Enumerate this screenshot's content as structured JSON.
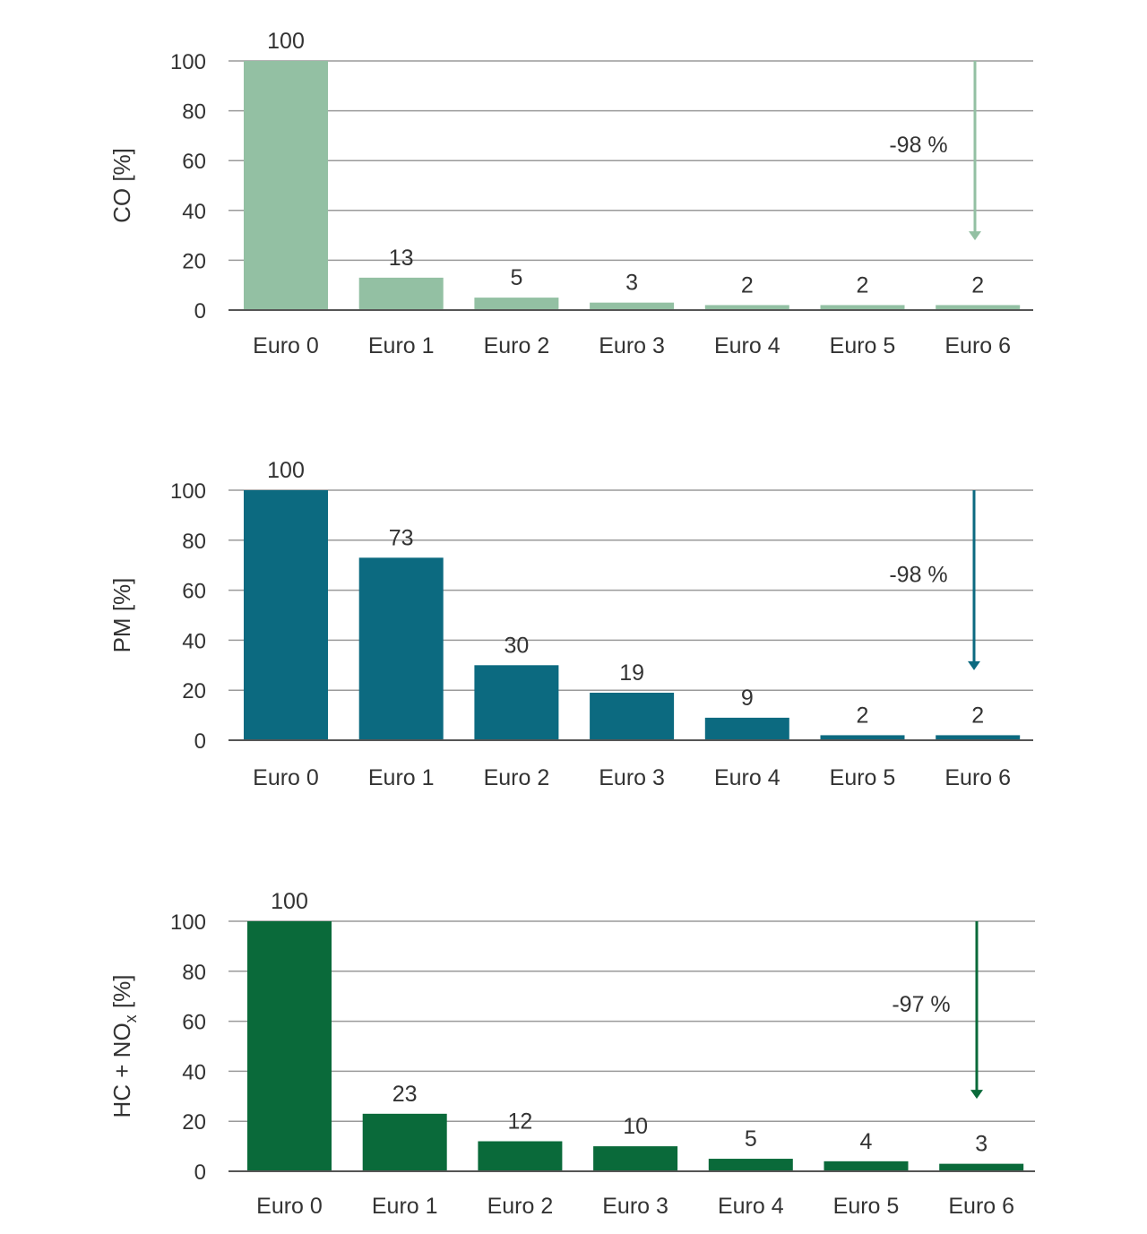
{
  "chart_data": [
    {
      "type": "bar",
      "ylabel": "CO [%]",
      "categories": [
        "Euro 0",
        "Euro 1",
        "Euro 2",
        "Euro 3",
        "Euro 4",
        "Euro 5",
        "Euro 6"
      ],
      "values": [
        100,
        13,
        5,
        3,
        2,
        2,
        2
      ],
      "value_labels": [
        "100",
        "13",
        "5",
        "3",
        "2",
        "2",
        "2"
      ],
      "ylim": [
        0,
        100
      ],
      "yticks": [
        0,
        20,
        40,
        60,
        80,
        100
      ],
      "grid": true,
      "color": "#93c0a3",
      "annotation": {
        "text": "-98 %",
        "from": 100,
        "to": 28
      }
    },
    {
      "type": "bar",
      "ylabel": "PM [%]",
      "categories": [
        "Euro 0",
        "Euro 1",
        "Euro 2",
        "Euro 3",
        "Euro 4",
        "Euro 5",
        "Euro 6"
      ],
      "values": [
        100,
        73,
        30,
        19,
        9,
        2,
        2
      ],
      "value_labels": [
        "100",
        "73",
        "30",
        "19",
        "9",
        "2",
        "2"
      ],
      "ylim": [
        0,
        100
      ],
      "yticks": [
        0,
        20,
        40,
        60,
        80,
        100
      ],
      "grid": true,
      "color": "#0c6a80",
      "annotation": {
        "text": "-98 %",
        "from": 100,
        "to": 28
      }
    },
    {
      "type": "bar",
      "ylabel": "HC + NO",
      "ylabel_subscript": "x",
      "ylabel_suffix": " [%]",
      "categories": [
        "Euro 0",
        "Euro 1",
        "Euro 2",
        "Euro 3",
        "Euro 4",
        "Euro 5",
        "Euro 6"
      ],
      "values": [
        100,
        23,
        12,
        10,
        5,
        4,
        3
      ],
      "value_labels": [
        "100",
        "23",
        "12",
        "10",
        "5",
        "4",
        "3"
      ],
      "ylim": [
        0,
        100
      ],
      "yticks": [
        0,
        20,
        40,
        60,
        80,
        100
      ],
      "grid": true,
      "color": "#0a6a3a",
      "annotation": {
        "text": "-97 %",
        "from": 100,
        "to": 29
      }
    }
  ]
}
